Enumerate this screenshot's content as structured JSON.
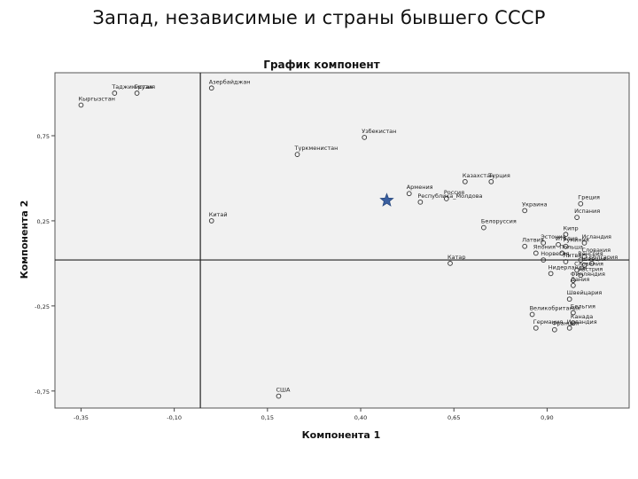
{
  "slide": {
    "title": "Запад, независимые и страны бывшего СССР"
  },
  "chart_data": {
    "type": "scatter",
    "title": "График компонент",
    "xlabel": "Компонента 1",
    "ylabel": "Компонента 2",
    "xlim": [
      -0.42,
      1.12
    ],
    "ylim": [
      -0.85,
      1.12
    ],
    "x_ticks": [
      {
        "value": -0.35,
        "label": "-0,35"
      },
      {
        "value": -0.1,
        "label": "-0,10"
      },
      {
        "value": 0.15,
        "label": "0,15"
      },
      {
        "value": 0.4,
        "label": "0,40"
      },
      {
        "value": 0.65,
        "label": "0,65"
      },
      {
        "value": 0.9,
        "label": "0,90"
      }
    ],
    "y_ticks": [
      {
        "value": 0.75,
        "label": "0,75"
      },
      {
        "value": 0.25,
        "label": "0,25"
      },
      {
        "value": -0.25,
        "label": "-0,25"
      },
      {
        "value": -0.75,
        "label": "-0,75"
      }
    ],
    "reference_lines": {
      "x": -0.03,
      "y": 0.02
    },
    "background_color": "#f1f1f1",
    "marker_color": "#333333",
    "highlight_color": "#3a5fa0",
    "points": [
      {
        "label": "Таджикистан",
        "x": -0.26,
        "y": 1.0
      },
      {
        "label": "Грузия",
        "x": -0.2,
        "y": 1.0
      },
      {
        "label": "Кыргызстан",
        "x": -0.35,
        "y": 0.93
      },
      {
        "label": "Азербайджан",
        "x": 0.0,
        "y": 1.03
      },
      {
        "label": "Узбекистан",
        "x": 0.41,
        "y": 0.74
      },
      {
        "label": "Туркменистан",
        "x": 0.23,
        "y": 0.64
      },
      {
        "label": "Турция",
        "x": 0.75,
        "y": 0.48
      },
      {
        "label": "Казахстан",
        "x": 0.68,
        "y": 0.48
      },
      {
        "label": "Армения",
        "x": 0.53,
        "y": 0.41
      },
      {
        "label": "Россия",
        "x": 0.63,
        "y": 0.38
      },
      {
        "label": "Республика_Молдова",
        "x": 0.56,
        "y": 0.36
      },
      {
        "label": "Китай",
        "x": 0.0,
        "y": 0.25
      },
      {
        "label": "Греция",
        "x": 0.99,
        "y": 0.35
      },
      {
        "label": "Украина",
        "x": 0.84,
        "y": 0.31
      },
      {
        "label": "Испания",
        "x": 0.98,
        "y": 0.27
      },
      {
        "label": "Белоруссия",
        "x": 0.73,
        "y": 0.21
      },
      {
        "label": "Кипр",
        "x": 0.95,
        "y": 0.17
      },
      {
        "label": "Эстония",
        "x": 0.89,
        "y": 0.12
      },
      {
        "label": "Исландия",
        "x": 1.0,
        "y": 0.12
      },
      {
        "label": "Латвия",
        "x": 0.84,
        "y": 0.1
      },
      {
        "label": "Руминия",
        "x": 0.95,
        "y": 0.1
      },
      {
        "label": "Италия",
        "x": 0.93,
        "y": 0.11
      },
      {
        "label": "Япония",
        "x": 0.87,
        "y": 0.06
      },
      {
        "label": "Польша",
        "x": 0.94,
        "y": 0.06
      },
      {
        "label": "Катар",
        "x": 0.64,
        "y": 0.0
      },
      {
        "label": "Венгрия",
        "x": 0.99,
        "y": 0.02
      },
      {
        "label": "Норвегия",
        "x": 0.89,
        "y": 0.02
      },
      {
        "label": "Литва",
        "x": 0.95,
        "y": 0.01
      },
      {
        "label": "Словакия",
        "x": 1.0,
        "y": 0.04
      },
      {
        "label": "Болгария",
        "x": 1.02,
        "y": 0.0
      },
      {
        "label": "Швеция",
        "x": 1.0,
        "y": -0.01
      },
      {
        "label": "Словения",
        "x": 0.98,
        "y": -0.04
      },
      {
        "label": "Нидерланды",
        "x": 0.91,
        "y": -0.06
      },
      {
        "label": "Финляндия",
        "x": 0.97,
        "y": -0.1
      },
      {
        "label": "Австрия",
        "x": 0.99,
        "y": -0.07
      },
      {
        "label": "Дания",
        "x": 0.97,
        "y": -0.13
      },
      {
        "label": "Швейцария",
        "x": 0.96,
        "y": -0.21
      },
      {
        "label": "Бельгия",
        "x": 0.97,
        "y": -0.29
      },
      {
        "label": "Великобритания",
        "x": 0.86,
        "y": -0.3
      },
      {
        "label": "Канада",
        "x": 0.97,
        "y": -0.35
      },
      {
        "label": "Германия",
        "x": 0.87,
        "y": -0.38
      },
      {
        "label": "Франция",
        "x": 0.92,
        "y": -0.39
      },
      {
        "label": "Ирландия",
        "x": 0.96,
        "y": -0.38
      },
      {
        "label": "США",
        "x": 0.18,
        "y": -0.78
      }
    ],
    "highlight_marker": {
      "shape": "star",
      "x": 0.47,
      "y": 0.37
    }
  }
}
